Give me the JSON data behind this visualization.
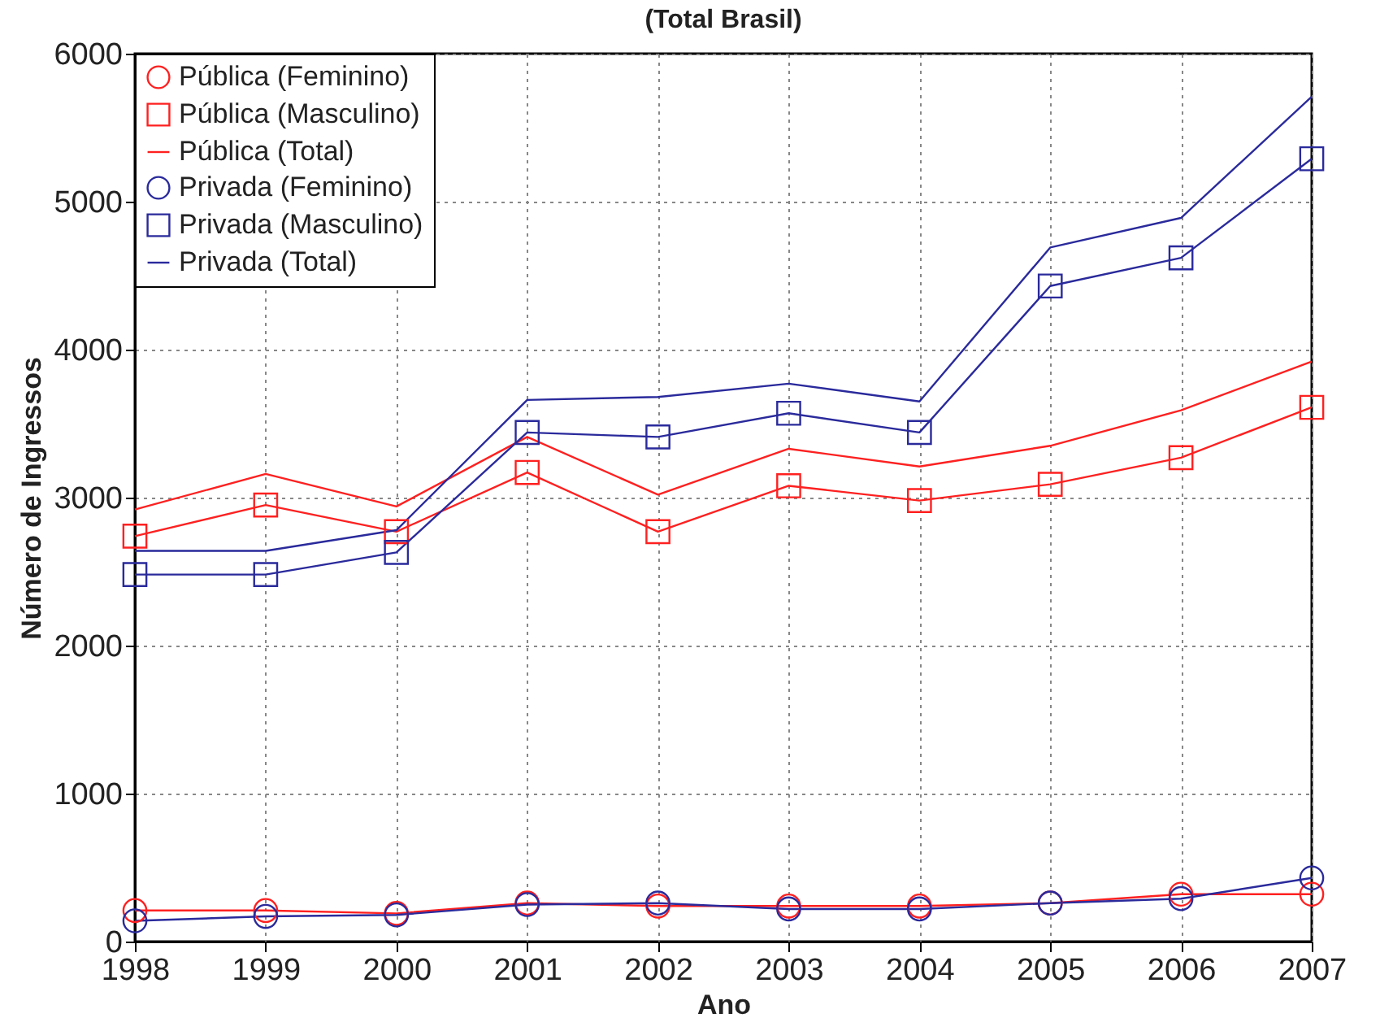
{
  "chart_data": {
    "type": "line",
    "title": "(Total Brasil)",
    "xlabel": "Ano",
    "ylabel": "Número de Ingressos",
    "x": [
      1998,
      1999,
      2000,
      2001,
      2002,
      2003,
      2004,
      2005,
      2006,
      2007
    ],
    "xlim": [
      1998,
      2007
    ],
    "xticks": [
      1998,
      1999,
      2000,
      2001,
      2002,
      2003,
      2004,
      2005,
      2006,
      2007
    ],
    "ylim": [
      0,
      6000
    ],
    "yticks": [
      0,
      1000,
      2000,
      3000,
      4000,
      5000,
      6000
    ],
    "grid": true,
    "legend": "top left",
    "line_style": "solid",
    "series": [
      {
        "name": "Pública (Feminino)",
        "color": "#ff2020",
        "marker": "circle",
        "values": [
          210,
          210,
          190,
          260,
          240,
          240,
          240,
          260,
          320,
          320
        ]
      },
      {
        "name": "Pública (Masculino)",
        "color": "#ff2020",
        "marker": "square",
        "values": [
          2740,
          2950,
          2770,
          3170,
          2770,
          3080,
          2980,
          3090,
          3270,
          3610
        ]
      },
      {
        "name": "Pública (Total)",
        "color": "#ff2020",
        "marker": "none",
        "values": [
          2920,
          3160,
          2940,
          3410,
          3020,
          3330,
          3210,
          3350,
          3590,
          3920
        ]
      },
      {
        "name": "Privada (Feminino)",
        "color": "#2a2a9c",
        "marker": "circle",
        "values": [
          140,
          170,
          180,
          250,
          260,
          220,
          220,
          260,
          290,
          430
        ]
      },
      {
        "name": "Privada (Masculino)",
        "color": "#2a2a9c",
        "marker": "square",
        "values": [
          2480,
          2480,
          2630,
          3440,
          3410,
          3570,
          3440,
          4430,
          4620,
          5290
        ]
      },
      {
        "name": "Privada (Total)",
        "color": "#2a2a9c",
        "marker": "none",
        "values": [
          2640,
          2640,
          2780,
          3660,
          3680,
          3770,
          3650,
          4690,
          4890,
          5710
        ]
      }
    ]
  }
}
